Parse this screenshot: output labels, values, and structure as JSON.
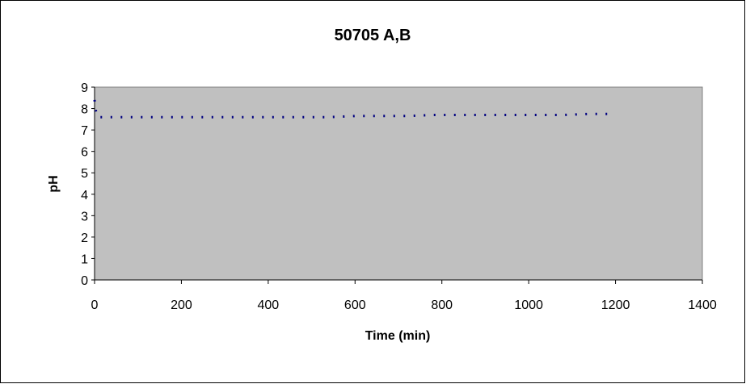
{
  "chart_data": {
    "type": "line",
    "title": "50705 A,B",
    "xlabel": "Time (min)",
    "ylabel": "pH",
    "xlim": [
      0,
      1400
    ],
    "ylim": [
      0,
      9
    ],
    "xticks": [
      0,
      200,
      400,
      600,
      800,
      1000,
      1200,
      1400
    ],
    "yticks": [
      0,
      1,
      2,
      3,
      4,
      5,
      6,
      7,
      8,
      9
    ],
    "grid": false,
    "legend": "none",
    "colors": {
      "series": "#000080",
      "plot_bg": "#c0c0c0",
      "border": "#000000"
    },
    "series": [
      {
        "line_style": "dashed",
        "x": [
          0,
          1,
          2,
          3,
          4,
          5,
          6,
          8,
          10,
          12,
          15,
          18,
          20,
          25,
          30,
          60,
          120,
          180,
          240,
          300,
          360,
          420,
          480,
          540,
          600,
          660,
          720,
          780,
          840,
          900,
          960,
          1020,
          1080,
          1140,
          1200
        ],
        "y": [
          8.4,
          8.2,
          8.0,
          7.9,
          7.8,
          7.7,
          7.65,
          7.6,
          7.6,
          7.6,
          7.6,
          7.6,
          7.6,
          7.6,
          7.6,
          7.6,
          7.6,
          7.6,
          7.6,
          7.6,
          7.6,
          7.6,
          7.6,
          7.6,
          7.65,
          7.65,
          7.65,
          7.7,
          7.7,
          7.7,
          7.7,
          7.7,
          7.7,
          7.75,
          7.75
        ]
      }
    ]
  }
}
